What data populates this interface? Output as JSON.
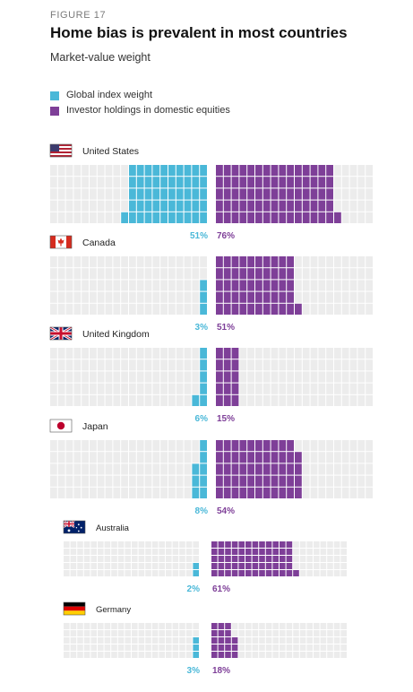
{
  "figure_label": "FIGURE 17",
  "title": "Home bias is prevalent in most countries",
  "subtitle": "Market-value weight",
  "legend": [
    {
      "label": "Global index weight",
      "color": "#4ab8d8"
    },
    {
      "label": "Investor holdings in domestic equities",
      "color": "#7e3f98"
    }
  ],
  "colors": {
    "empty": "#ececec",
    "global": "#4ab8d8",
    "domestic": "#7e3f98"
  },
  "chart_data": {
    "type": "waffle",
    "title": "Home bias is prevalent in most countries",
    "subtitle": "Market-value weight",
    "series": [
      {
        "name": "Global index weight",
        "unit": "%"
      },
      {
        "name": "Investor holdings in domestic equities",
        "unit": "%"
      }
    ],
    "countries": [
      {
        "name": "United States",
        "flag": "us-flag",
        "global": 51,
        "domestic": 76,
        "global_label": "51%",
        "domestic_label": "76%"
      },
      {
        "name": "Canada",
        "flag": "canada-flag",
        "global": 3,
        "domestic": 51,
        "global_label": "3%",
        "domestic_label": "51%"
      },
      {
        "name": "United Kingdom",
        "flag": "uk-flag",
        "global": 6,
        "domestic": 15,
        "global_label": "6%",
        "domestic_label": "15%"
      },
      {
        "name": "Japan",
        "flag": "japan-flag",
        "global": 8,
        "domestic": 54,
        "global_label": "8%",
        "domestic_label": "54%"
      },
      {
        "name": "Australia",
        "flag": "australia-flag",
        "global": 2,
        "domestic": 61,
        "global_label": "2%",
        "domestic_label": "61%"
      },
      {
        "name": "Germany",
        "flag": "germany-flag",
        "global": 3,
        "domestic": 18,
        "global_label": "3%",
        "domestic_label": "18%"
      }
    ]
  }
}
